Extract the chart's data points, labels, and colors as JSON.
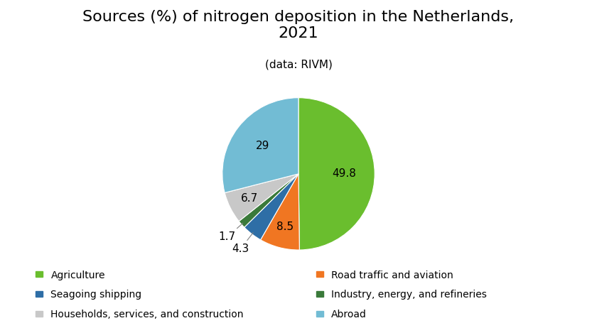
{
  "title": "Sources (%) of nitrogen deposition in the Netherlands,\n2021",
  "subtitle": "(data: RIVM)",
  "labels": [
    "Agriculture",
    "Road traffic and aviation",
    "Seagoing shipping",
    "Industry, energy, and refineries",
    "Households, services, and construction",
    "Abroad"
  ],
  "values": [
    49.8,
    8.5,
    4.3,
    1.7,
    6.7,
    29.0
  ],
  "colors": [
    "#6abe2e",
    "#f07622",
    "#2e6ea6",
    "#3a7a3a",
    "#c8c8c8",
    "#72bcd4"
  ],
  "autopct_labels": [
    "49.8",
    "8.5",
    "4.3",
    "1.7",
    "6.7",
    "29"
  ],
  "background_color": "#ffffff",
  "title_fontsize": 16,
  "subtitle_fontsize": 11,
  "label_fontsize": 11,
  "legend_fontsize": 10,
  "legend_order": [
    0,
    1,
    2,
    3,
    4,
    5
  ]
}
